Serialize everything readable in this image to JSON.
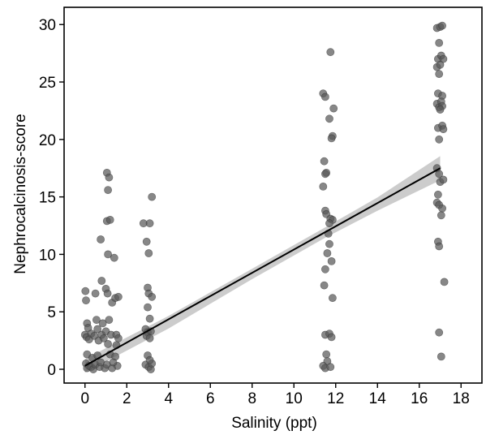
{
  "chart_data": {
    "type": "scatter",
    "title": "",
    "xlabel": "Salinity (ppt)",
    "ylabel": "Nephrocalcinosis-score",
    "xlim": [
      -1,
      19
    ],
    "ylim": [
      -1.2,
      31.5
    ],
    "x_ticks": [
      0,
      2,
      4,
      6,
      8,
      10,
      12,
      14,
      16,
      18
    ],
    "y_ticks": [
      0,
      5,
      10,
      15,
      20,
      25,
      30
    ],
    "grid": false,
    "legend": "none",
    "point_color": "#595959",
    "points": [
      {
        "x": 0.02,
        "y": 6.8
      },
      {
        "x": 0.05,
        "y": 6.0
      },
      {
        "x": 0.1,
        "y": 4.0
      },
      {
        "x": 0.15,
        "y": 3.6
      },
      {
        "x": 0.0,
        "y": 3.0
      },
      {
        "x": 0.08,
        "y": 2.8
      },
      {
        "x": 0.2,
        "y": 2.6
      },
      {
        "x": 0.3,
        "y": 3.1
      },
      {
        "x": 0.1,
        "y": 1.3
      },
      {
        "x": 0.05,
        "y": 0.5
      },
      {
        "x": 0.1,
        "y": 0.1
      },
      {
        "x": 0.2,
        "y": 0.3
      },
      {
        "x": 0.3,
        "y": 0.2
      },
      {
        "x": 0.4,
        "y": 0.0
      },
      {
        "x": 0.5,
        "y": 0.4
      },
      {
        "x": 0.35,
        "y": 1.0
      },
      {
        "x": 0.45,
        "y": 2.9
      },
      {
        "x": 0.55,
        "y": 4.3
      },
      {
        "x": 0.5,
        "y": 6.6
      },
      {
        "x": 0.6,
        "y": 3.5
      },
      {
        "x": 0.65,
        "y": 2.5
      },
      {
        "x": 0.6,
        "y": 1.2
      },
      {
        "x": 0.7,
        "y": 0.2
      },
      {
        "x": 0.75,
        "y": 0.6
      },
      {
        "x": 0.8,
        "y": 3.0
      },
      {
        "x": 0.85,
        "y": 4.0
      },
      {
        "x": 0.9,
        "y": 2.7
      },
      {
        "x": 0.95,
        "y": 0.1
      },
      {
        "x": 0.8,
        "y": 7.7
      },
      {
        "x": 0.75,
        "y": 11.3
      },
      {
        "x": 1.05,
        "y": 17.1
      },
      {
        "x": 1.15,
        "y": 16.7
      },
      {
        "x": 1.1,
        "y": 15.6
      },
      {
        "x": 1.05,
        "y": 12.9
      },
      {
        "x": 1.2,
        "y": 13.0
      },
      {
        "x": 1.1,
        "y": 10.0
      },
      {
        "x": 1.0,
        "y": 7.0
      },
      {
        "x": 1.08,
        "y": 6.6
      },
      {
        "x": 1.15,
        "y": 4.3
      },
      {
        "x": 1.0,
        "y": 3.3
      },
      {
        "x": 1.25,
        "y": 3.0
      },
      {
        "x": 1.1,
        "y": 2.2
      },
      {
        "x": 1.2,
        "y": 1.3
      },
      {
        "x": 1.05,
        "y": 0.4
      },
      {
        "x": 1.3,
        "y": 0.1
      },
      {
        "x": 1.4,
        "y": 9.7
      },
      {
        "x": 1.3,
        "y": 5.8
      },
      {
        "x": 1.45,
        "y": 6.2
      },
      {
        "x": 1.6,
        "y": 6.3
      },
      {
        "x": 1.5,
        "y": 3.0
      },
      {
        "x": 1.6,
        "y": 2.7
      },
      {
        "x": 1.45,
        "y": 1.1
      },
      {
        "x": 1.55,
        "y": 0.3
      },
      {
        "x": 1.35,
        "y": 0.6
      },
      {
        "x": 1.5,
        "y": 2.1
      },
      {
        "x": 2.8,
        "y": 12.7
      },
      {
        "x": 3.1,
        "y": 12.7
      },
      {
        "x": 3.2,
        "y": 15.0
      },
      {
        "x": 2.95,
        "y": 11.1
      },
      {
        "x": 3.05,
        "y": 10.1
      },
      {
        "x": 3.0,
        "y": 7.1
      },
      {
        "x": 3.05,
        "y": 6.6
      },
      {
        "x": 3.2,
        "y": 6.3
      },
      {
        "x": 3.0,
        "y": 5.4
      },
      {
        "x": 3.1,
        "y": 4.4
      },
      {
        "x": 2.9,
        "y": 3.5
      },
      {
        "x": 3.0,
        "y": 3.2
      },
      {
        "x": 3.15,
        "y": 3.3
      },
      {
        "x": 2.95,
        "y": 2.9
      },
      {
        "x": 3.1,
        "y": 2.7
      },
      {
        "x": 3.0,
        "y": 1.2
      },
      {
        "x": 2.9,
        "y": 0.4
      },
      {
        "x": 3.05,
        "y": 0.2
      },
      {
        "x": 3.15,
        "y": 0.0
      },
      {
        "x": 3.2,
        "y": 0.5
      },
      {
        "x": 3.1,
        "y": 0.8
      },
      {
        "x": 11.4,
        "y": 24.0
      },
      {
        "x": 11.5,
        "y": 23.7
      },
      {
        "x": 11.75,
        "y": 27.6
      },
      {
        "x": 11.9,
        "y": 22.7
      },
      {
        "x": 11.7,
        "y": 21.8
      },
      {
        "x": 11.85,
        "y": 20.3
      },
      {
        "x": 11.8,
        "y": 20.1
      },
      {
        "x": 11.45,
        "y": 18.1
      },
      {
        "x": 11.55,
        "y": 17.1
      },
      {
        "x": 11.5,
        "y": 17.0
      },
      {
        "x": 11.4,
        "y": 15.9
      },
      {
        "x": 11.5,
        "y": 13.8
      },
      {
        "x": 11.55,
        "y": 13.5
      },
      {
        "x": 11.75,
        "y": 13.1
      },
      {
        "x": 11.85,
        "y": 13.0
      },
      {
        "x": 11.7,
        "y": 12.7
      },
      {
        "x": 11.65,
        "y": 11.8
      },
      {
        "x": 11.7,
        "y": 10.9
      },
      {
        "x": 11.6,
        "y": 10.1
      },
      {
        "x": 11.8,
        "y": 9.4
      },
      {
        "x": 11.5,
        "y": 8.7
      },
      {
        "x": 11.45,
        "y": 7.3
      },
      {
        "x": 11.85,
        "y": 6.2
      },
      {
        "x": 11.5,
        "y": 3.0
      },
      {
        "x": 11.7,
        "y": 3.1
      },
      {
        "x": 11.8,
        "y": 2.8
      },
      {
        "x": 11.55,
        "y": 1.3
      },
      {
        "x": 11.6,
        "y": 0.7
      },
      {
        "x": 11.4,
        "y": 0.3
      },
      {
        "x": 11.5,
        "y": 0.1
      },
      {
        "x": 11.75,
        "y": 0.2
      },
      {
        "x": 16.85,
        "y": 29.7
      },
      {
        "x": 17.0,
        "y": 29.8
      },
      {
        "x": 17.1,
        "y": 29.9
      },
      {
        "x": 16.95,
        "y": 28.4
      },
      {
        "x": 16.9,
        "y": 27.0
      },
      {
        "x": 17.05,
        "y": 27.3
      },
      {
        "x": 17.15,
        "y": 27.0
      },
      {
        "x": 16.85,
        "y": 26.3
      },
      {
        "x": 17.0,
        "y": 26.5
      },
      {
        "x": 16.95,
        "y": 25.7
      },
      {
        "x": 16.9,
        "y": 24.0
      },
      {
        "x": 17.1,
        "y": 23.8
      },
      {
        "x": 16.85,
        "y": 23.1
      },
      {
        "x": 16.95,
        "y": 22.8
      },
      {
        "x": 17.05,
        "y": 23.3
      },
      {
        "x": 17.1,
        "y": 22.9
      },
      {
        "x": 17.0,
        "y": 22.6
      },
      {
        "x": 16.9,
        "y": 21.0
      },
      {
        "x": 17.1,
        "y": 21.2
      },
      {
        "x": 17.15,
        "y": 20.9
      },
      {
        "x": 16.95,
        "y": 20.0
      },
      {
        "x": 16.85,
        "y": 17.5
      },
      {
        "x": 16.95,
        "y": 17.0
      },
      {
        "x": 17.0,
        "y": 16.3
      },
      {
        "x": 17.15,
        "y": 16.5
      },
      {
        "x": 16.9,
        "y": 15.2
      },
      {
        "x": 16.85,
        "y": 14.5
      },
      {
        "x": 16.95,
        "y": 14.3
      },
      {
        "x": 17.1,
        "y": 14.0
      },
      {
        "x": 17.05,
        "y": 13.4
      },
      {
        "x": 16.9,
        "y": 11.1
      },
      {
        "x": 16.95,
        "y": 10.7
      },
      {
        "x": 17.2,
        "y": 7.6
      },
      {
        "x": 16.95,
        "y": 3.2
      },
      {
        "x": 17.05,
        "y": 1.1
      }
    ],
    "regression_line": {
      "x": [
        0,
        17
      ],
      "y": [
        0.3,
        17.5
      ],
      "color": "#000000"
    },
    "confidence_band": {
      "x": [
        0,
        4,
        8,
        11.5,
        14,
        17
      ],
      "upper": [
        0.9,
        4.65,
        8.75,
        12.35,
        14.95,
        18.55
      ],
      "lower": [
        -0.3,
        3.55,
        7.85,
        11.45,
        13.8,
        16.45
      ],
      "color": "#cccccc"
    }
  }
}
